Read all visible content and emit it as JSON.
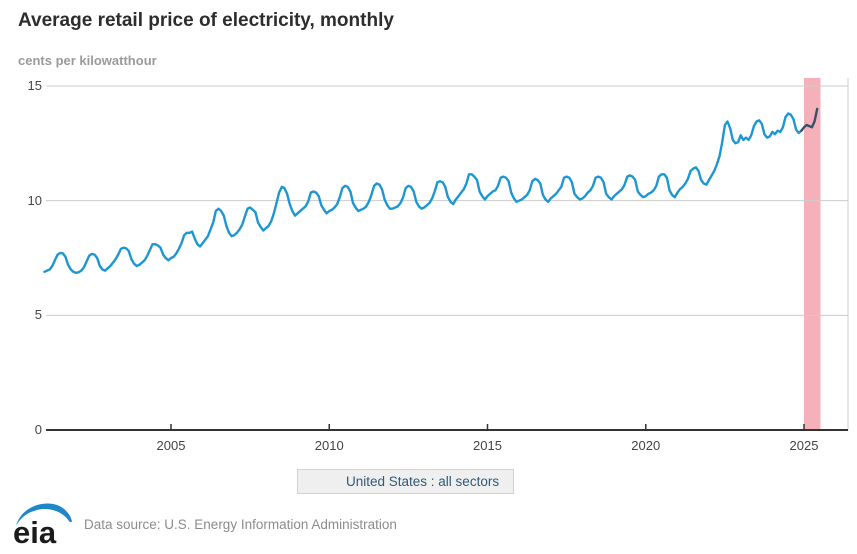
{
  "header": {
    "title": "Average retail price of electricity, monthly",
    "subtitle": "cents per kilowatthour"
  },
  "legend": {
    "label": "United States : all sectors"
  },
  "footer": {
    "logo_text": "eia",
    "source": "Data source: U.S. Energy Information Administration"
  },
  "colors": {
    "line_blue": "#1e96d2",
    "recent_navy": "#3b5169",
    "band_pink": "#f6b0ba",
    "grid_gray": "#cccccc",
    "axis_dark": "#333333",
    "legend_bg": "#efefef",
    "logo_blue": "#1d87c9"
  },
  "chart_data": {
    "type": "line",
    "title": "Average retail price of electricity, monthly",
    "xlabel": "",
    "ylabel": "cents per kilowatthour",
    "x_start_year": 2001.0,
    "x_end_year": 2026.35,
    "months_per_point": 1,
    "start_month": "2001-01",
    "end_month": "2025-06",
    "ylim": [
      0,
      15
    ],
    "y_ticks": [
      0,
      5,
      10,
      15
    ],
    "x_ticks": [
      2005,
      2010,
      2015,
      2020,
      2025
    ],
    "grid": true,
    "legend_position": "bottom-center",
    "grid_color": "#cccccc",
    "axis_color": "#333333",
    "highlight_band": {
      "from": 2025.0,
      "to": 2025.52,
      "color": "#f6b0ba",
      "meaning": "current partial year"
    },
    "series": [
      {
        "name": "United States : all sectors",
        "color": "#1e96d2",
        "recent_color": "#3b5169",
        "recent_points": 7,
        "values": [
          6.9,
          6.95,
          7.0,
          7.15,
          7.4,
          7.65,
          7.72,
          7.7,
          7.55,
          7.2,
          7.0,
          6.9,
          6.85,
          6.88,
          6.95,
          7.1,
          7.35,
          7.6,
          7.68,
          7.65,
          7.5,
          7.15,
          7.0,
          6.95,
          7.05,
          7.15,
          7.3,
          7.45,
          7.65,
          7.9,
          7.95,
          7.92,
          7.8,
          7.45,
          7.25,
          7.15,
          7.2,
          7.3,
          7.4,
          7.6,
          7.85,
          8.1,
          8.1,
          8.05,
          7.95,
          7.65,
          7.5,
          7.4,
          7.5,
          7.55,
          7.7,
          7.9,
          8.15,
          8.5,
          8.6,
          8.6,
          8.65,
          8.35,
          8.1,
          8.0,
          8.15,
          8.3,
          8.45,
          8.75,
          9.05,
          9.55,
          9.65,
          9.55,
          9.35,
          8.9,
          8.6,
          8.45,
          8.5,
          8.6,
          8.75,
          8.95,
          9.3,
          9.65,
          9.7,
          9.6,
          9.5,
          9.05,
          8.85,
          8.7,
          8.8,
          8.9,
          9.1,
          9.45,
          9.9,
          10.35,
          10.6,
          10.55,
          10.3,
          9.85,
          9.55,
          9.35,
          9.45,
          9.55,
          9.65,
          9.75,
          9.95,
          10.35,
          10.4,
          10.35,
          10.2,
          9.8,
          9.6,
          9.45,
          9.55,
          9.6,
          9.7,
          9.85,
          10.15,
          10.55,
          10.65,
          10.6,
          10.4,
          9.9,
          9.7,
          9.55,
          9.6,
          9.65,
          9.75,
          9.95,
          10.25,
          10.65,
          10.75,
          10.7,
          10.5,
          10.05,
          9.8,
          9.65,
          9.65,
          9.7,
          9.75,
          9.9,
          10.15,
          10.55,
          10.65,
          10.6,
          10.4,
          9.95,
          9.75,
          9.65,
          9.7,
          9.8,
          9.9,
          10.1,
          10.4,
          10.8,
          10.85,
          10.8,
          10.6,
          10.15,
          9.95,
          9.85,
          10.05,
          10.2,
          10.35,
          10.5,
          10.75,
          11.15,
          11.15,
          11.05,
          10.9,
          10.4,
          10.2,
          10.05,
          10.2,
          10.3,
          10.4,
          10.45,
          10.65,
          11.0,
          11.05,
          11.0,
          10.85,
          10.35,
          10.1,
          9.95,
          10.0,
          10.05,
          10.15,
          10.25,
          10.45,
          10.85,
          10.95,
          10.9,
          10.75,
          10.25,
          10.05,
          9.95,
          10.1,
          10.2,
          10.3,
          10.45,
          10.6,
          11.0,
          11.05,
          11.0,
          10.8,
          10.3,
          10.15,
          10.05,
          10.1,
          10.2,
          10.35,
          10.45,
          10.65,
          11.0,
          11.05,
          11.0,
          10.8,
          10.3,
          10.15,
          10.05,
          10.2,
          10.3,
          10.4,
          10.5,
          10.7,
          11.05,
          11.1,
          11.05,
          10.9,
          10.4,
          10.25,
          10.15,
          10.2,
          10.3,
          10.35,
          10.45,
          10.65,
          11.05,
          11.15,
          11.15,
          11.0,
          10.45,
          10.25,
          10.15,
          10.35,
          10.5,
          10.6,
          10.75,
          10.95,
          11.3,
          11.4,
          11.45,
          11.3,
          10.9,
          10.75,
          10.7,
          10.9,
          11.1,
          11.3,
          11.6,
          11.95,
          12.55,
          13.3,
          13.45,
          13.15,
          12.65,
          12.5,
          12.55,
          12.85,
          12.65,
          12.75,
          12.65,
          12.85,
          13.25,
          13.45,
          13.5,
          13.35,
          12.9,
          12.75,
          12.8,
          13.0,
          12.9,
          13.05,
          13.0,
          13.2,
          13.65,
          13.8,
          13.75,
          13.55,
          13.1,
          12.95,
          13.05,
          13.2,
          13.3,
          13.25,
          13.2,
          13.45,
          14.0
        ]
      }
    ]
  }
}
